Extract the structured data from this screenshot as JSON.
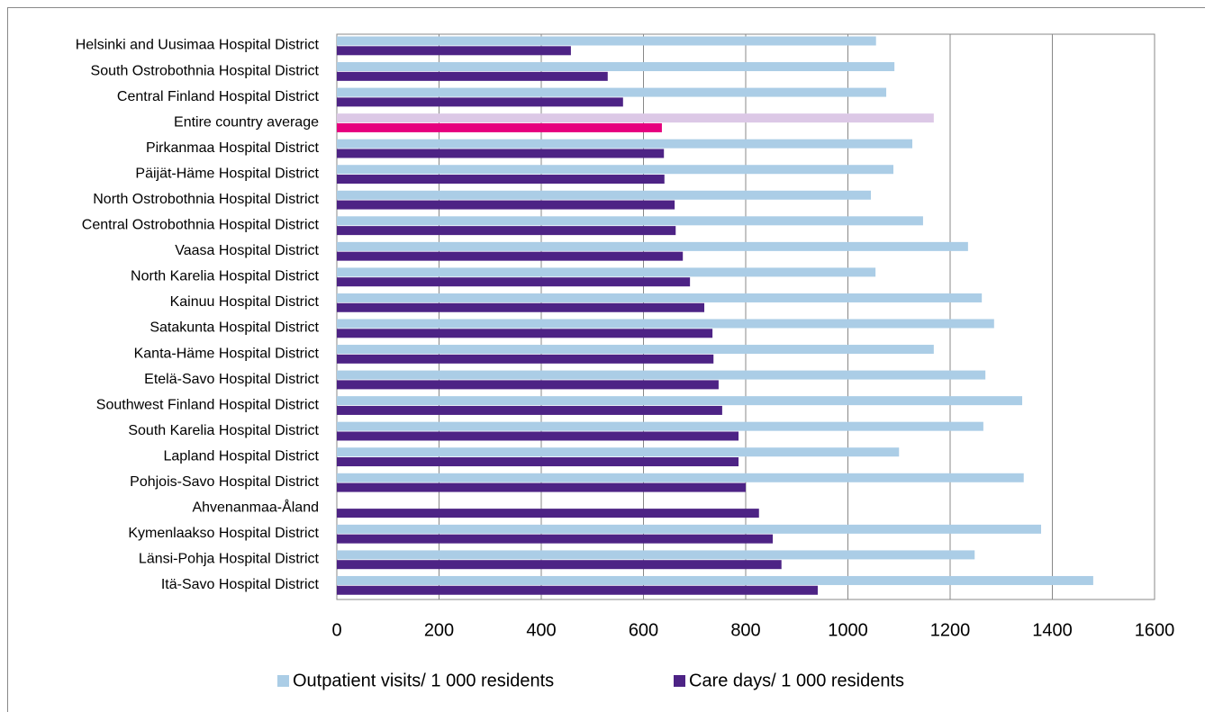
{
  "chart_data": {
    "type": "hbar",
    "categories": [
      "Helsinki and Uusimaa Hospital District",
      "South Ostrobothnia Hospital District",
      "Central Finland Hospital District",
      "Entire country  average",
      "Pirkanmaa Hospital District ",
      "Päijät-Häme Hospital District ",
      "North Ostrobothnia Hospital District",
      "Central Ostrobothnia Hospital District",
      "Vaasa Hospital District",
      "North Karelia Hospital District",
      "Kainuu Hospital District",
      "Satakunta Hospital District",
      "Kanta-Häme Hospital District",
      "Etelä-Savo Hospital District",
      "Southwest Finland Hospital District",
      "South Karelia Hospital District",
      "Lapland Hospital District",
      "Pohjois-Savo Hospital District",
      "Ahvenanmaa-Åland",
      "Kymenlaakso Hospital District",
      "Länsi-Pohja Hospital District",
      "Itä-Savo Hospital District"
    ],
    "series": [
      {
        "name": "Outpatient visits/ 1 000 residents",
        "color": "#abcde6",
        "highlight": {
          "index": 3,
          "color": "#dcc8e6"
        },
        "values": [
          1055,
          1091,
          1075,
          1168,
          1126,
          1089,
          1045,
          1147,
          1235,
          1054,
          1262,
          1286,
          1168,
          1269,
          1341,
          1265,
          1100,
          1344,
          null,
          1378,
          1248,
          1480
        ]
      },
      {
        "name": "Care days/ 1 000 residents",
        "color": "#4d2385",
        "highlight": {
          "index": 3,
          "color": "#e6007e"
        },
        "values": [
          458,
          530,
          560,
          636,
          640,
          641,
          661,
          663,
          677,
          691,
          719,
          735,
          737,
          747,
          754,
          786,
          786,
          800,
          826,
          853,
          870,
          941
        ]
      }
    ],
    "xlim": [
      0,
      1600
    ],
    "xticks": [
      0,
      200,
      400,
      600,
      800,
      1000,
      1200,
      1400,
      1600
    ],
    "grid": true,
    "legend": "bottom"
  }
}
